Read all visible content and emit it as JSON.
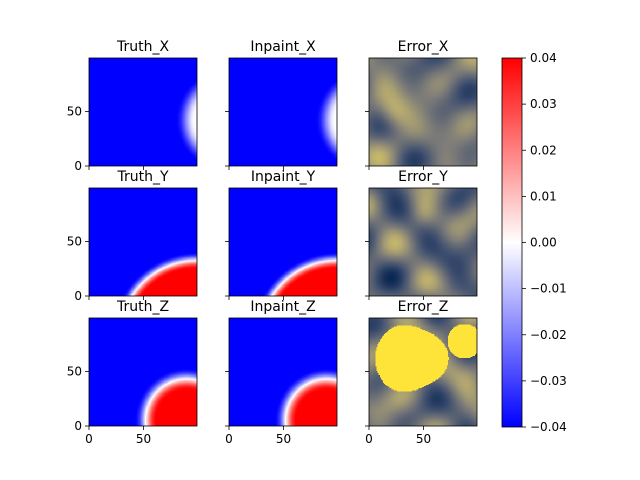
{
  "chart_data": {
    "type": "heatmap",
    "grid": {
      "rows": 3,
      "cols": 3
    },
    "panels": [
      {
        "title": "Truth_X",
        "kind": "x_field"
      },
      {
        "title": "Inpaint_X",
        "kind": "x_field"
      },
      {
        "title": "Error_X",
        "kind": "error_x"
      },
      {
        "title": "Truth_Y",
        "kind": "y_field"
      },
      {
        "title": "Inpaint_Y",
        "kind": "y_field"
      },
      {
        "title": "Error_Y",
        "kind": "error_y"
      },
      {
        "title": "Truth_Z",
        "kind": "z_field"
      },
      {
        "title": "Inpaint_Z",
        "kind": "z_field"
      },
      {
        "title": "Error_Z",
        "kind": "error_z"
      }
    ],
    "x_ticks": [
      0,
      50
    ],
    "y_ticks": [
      0,
      50
    ],
    "xlim": [
      0,
      99
    ],
    "ylim": [
      0,
      99
    ],
    "colorbar": {
      "vmin": -0.04,
      "vmax": 0.04,
      "ticks": [
        "0.04",
        "0.03",
        "0.02",
        "0.01",
        "0.00",
        "−0.01",
        "−0.02",
        "−0.03",
        "−0.04"
      ],
      "colors": {
        "low": "#0000ff",
        "mid": "#ffffff",
        "high": "#ff0000"
      }
    },
    "error_colormap": {
      "low": "#00204c",
      "mid": "#7c7b78",
      "high": "#fee838"
    }
  }
}
